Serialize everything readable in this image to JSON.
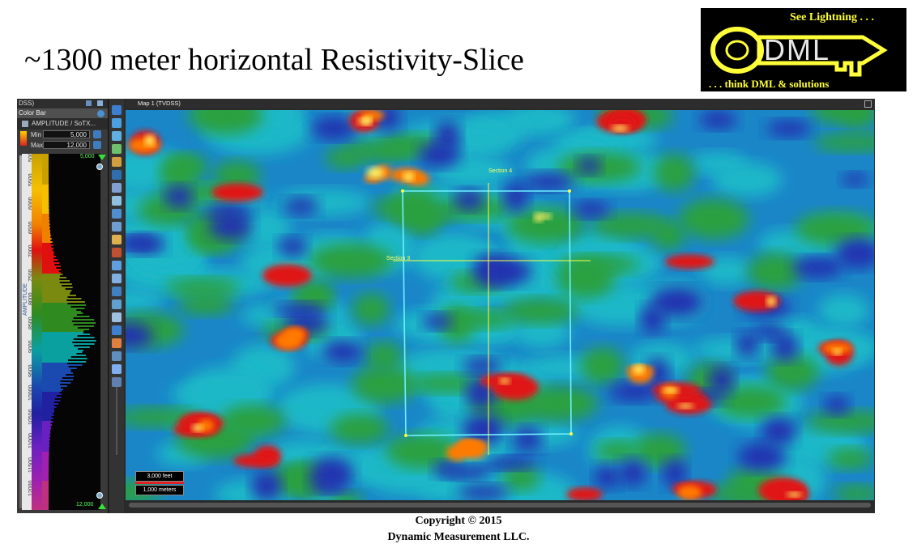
{
  "slide": {
    "title": "~1300 meter horizontal Resistivity-Slice",
    "copyright": "Copyright  © 2015",
    "company": "Dynamic  Measurement LLC."
  },
  "logo": {
    "tagline_top": "See Lightning . . .",
    "wordmark": "DML",
    "tagline_bottom": ". . . think DML & solutions"
  },
  "app": {
    "panel_strip_text": "DSS)",
    "color_bar": {
      "title": "Color Bar",
      "attribute": "AMPLITUDE / SoTX...",
      "min_label": "Min",
      "min_value": "5,000",
      "max_label": "Max",
      "max_value": "12,000",
      "ramp_top_label": "5,000",
      "ramp_bottom_label": "12,000",
      "axis_label": "AMPLITUDE",
      "ticks": [
        "5000",
        "5500",
        "6000",
        "6500",
        "7000",
        "7500",
        "8000",
        "8500",
        "9000",
        "9500",
        "10000",
        "10500",
        "11000",
        "11500",
        "12000"
      ]
    },
    "map": {
      "title": "Map 1 (TVDSS)",
      "section_labels": [
        "Section 4",
        "Section 3"
      ],
      "scale_feet": "3,000 feet",
      "scale_meters": "1,000 meters"
    }
  }
}
